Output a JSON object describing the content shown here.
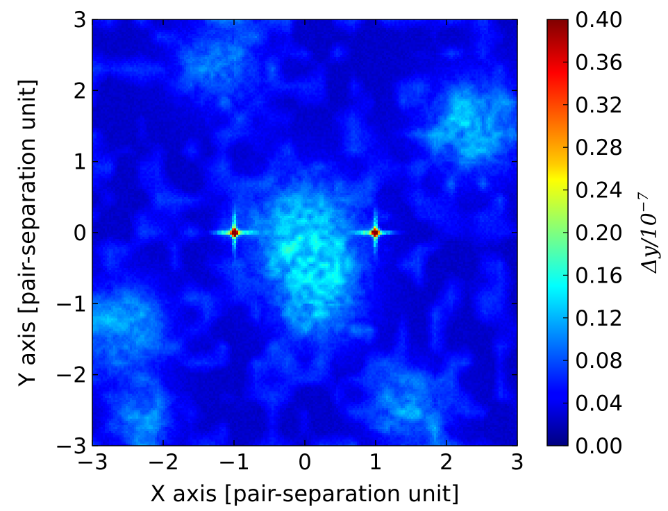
{
  "chart_data": {
    "type": "heatmap",
    "title": "",
    "xlabel": "X axis [pair-separation unit]",
    "ylabel": "Y axis [pair-separation unit]",
    "xlim": [
      -3,
      3
    ],
    "ylim": [
      -3,
      3
    ],
    "x_ticks": [
      -3,
      -2,
      -1,
      0,
      1,
      2,
      3
    ],
    "y_ticks": [
      -3,
      -2,
      -1,
      0,
      1,
      2,
      3
    ],
    "x_tick_labels": [
      "−3",
      "−2",
      "−1",
      "0",
      "1",
      "2",
      "3"
    ],
    "y_tick_labels": [
      "−3",
      "−2",
      "−1",
      "0",
      "1",
      "2",
      "3"
    ],
    "colormap": "jet",
    "colorbar": {
      "label_base": "Δy/10",
      "label_exp": "−7",
      "range": [
        0.0,
        0.4
      ],
      "ticks": [
        0.0,
        0.04,
        0.08,
        0.12,
        0.16,
        0.2,
        0.24,
        0.28,
        0.32,
        0.36,
        0.4
      ],
      "tick_labels": [
        "0.00",
        "0.04",
        "0.08",
        "0.12",
        "0.16",
        "0.20",
        "0.24",
        "0.28",
        "0.32",
        "0.36",
        "0.40"
      ]
    },
    "features": [
      {
        "x": 0.0,
        "y": 0.0,
        "peak": 0.16,
        "spread": 0.55
      },
      {
        "x": -1.0,
        "y": 0.0,
        "peak": 0.4,
        "spread": 0.05
      },
      {
        "x": 1.0,
        "y": 0.0,
        "peak": 0.4,
        "spread": 0.05
      },
      {
        "x": 2.4,
        "y": 1.5,
        "peak": 0.12,
        "spread": 0.5
      },
      {
        "x": -2.6,
        "y": -1.4,
        "peak": 0.1,
        "spread": 0.5
      },
      {
        "x": -2.3,
        "y": -2.7,
        "peak": 0.11,
        "spread": 0.3
      },
      {
        "x": 1.5,
        "y": -2.5,
        "peak": 0.1,
        "spread": 0.4
      },
      {
        "x": 0.2,
        "y": -1.0,
        "peak": 0.11,
        "spread": 0.45
      },
      {
        "x": -1.2,
        "y": 2.4,
        "peak": 0.09,
        "spread": 0.45
      }
    ]
  }
}
